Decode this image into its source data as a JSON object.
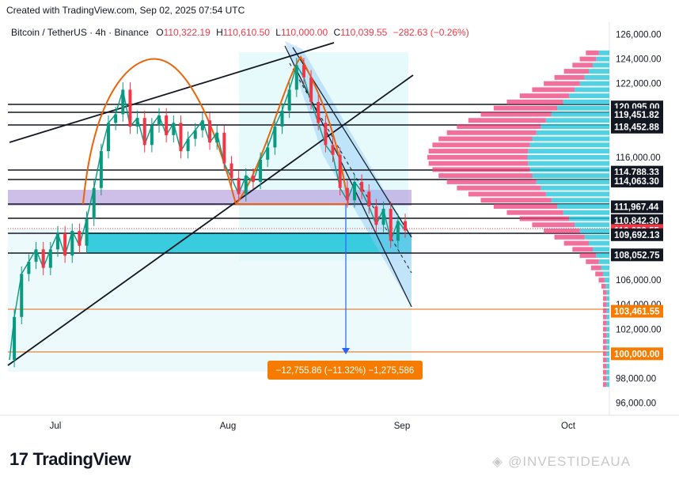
{
  "header": {
    "text": "Created with TradingView.com, Sep 02, 2025 07:54 UTC"
  },
  "legend": {
    "symbol": "Bitcoin / TetherUS · 4h · Binance",
    "open_label": "O",
    "open": "110,322.19",
    "high_label": "H",
    "high": "110,610.50",
    "low_label": "L",
    "low": "110,000.00",
    "close_label": "C",
    "close": "110,039.55",
    "change": "−282.63 (−0.26%)"
  },
  "colors": {
    "down": "#f23645",
    "orange": "#e8650a",
    "cyan": "#26c6da",
    "purple": "#b39ddb",
    "zone": "#e0f7fa",
    "label_bg": "#f57c00",
    "black_label": "#131722"
  },
  "logo": {
    "text": "TradingView",
    "mark": "17"
  },
  "watermark": {
    "text": "@INVESTIDEAUA"
  },
  "measure_label": "−12,755.86 (−11.32%) −1,275,586",
  "chart_data": {
    "type": "candlestick",
    "title": "",
    "x_ticks": [
      "Jul",
      "Aug",
      "Sep",
      "Oct"
    ],
    "y_ticks": [
      96000,
      98000,
      102000,
      104000,
      106000,
      116000,
      122000,
      124000,
      126000
    ],
    "ylim": [
      95000,
      127000
    ],
    "price_labels": [
      {
        "value": 120095.0,
        "text": "120,095.00",
        "style": "black"
      },
      {
        "value": 119451.82,
        "text": "119,451.82",
        "style": "black"
      },
      {
        "value": 118452.88,
        "text": "118,452.88",
        "style": "black"
      },
      {
        "value": 114788.33,
        "text": "114,788.33",
        "style": "black"
      },
      {
        "value": 114063.3,
        "text": "114,063.30",
        "style": "black"
      },
      {
        "value": 111967.44,
        "text": "111,967.44",
        "style": "black"
      },
      {
        "value": 110842.3,
        "text": "110,842.30",
        "style": "black"
      },
      {
        "value": 110039.55,
        "text": "110,039.55",
        "style": "red"
      },
      {
        "value": 109692.13,
        "text": "109,692.13",
        "style": "black"
      },
      {
        "value": 108052.75,
        "text": "108,052.75",
        "style": "black"
      },
      {
        "value": 103461.55,
        "text": "103,461.55",
        "style": "orange"
      },
      {
        "value": 100000.0,
        "text": "100,000.00",
        "style": "orange"
      }
    ],
    "price_path": [
      [
        0,
        99500
      ],
      [
        4,
        103000
      ],
      [
        10,
        106500
      ],
      [
        16,
        107500
      ],
      [
        22,
        108500
      ],
      [
        28,
        107000
      ],
      [
        34,
        108500
      ],
      [
        40,
        109800
      ],
      [
        46,
        108000
      ],
      [
        52,
        110000
      ],
      [
        58,
        108800
      ],
      [
        64,
        111000
      ],
      [
        70,
        113500
      ],
      [
        76,
        116500
      ],
      [
        82,
        118800
      ],
      [
        88,
        119500
      ],
      [
        94,
        121500
      ],
      [
        100,
        118500
      ],
      [
        106,
        119200
      ],
      [
        112,
        117000
      ],
      [
        118,
        118600
      ],
      [
        124,
        119400
      ],
      [
        130,
        117800
      ],
      [
        136,
        118800
      ],
      [
        142,
        116500
      ],
      [
        148,
        117500
      ],
      [
        154,
        118200
      ],
      [
        160,
        119000
      ],
      [
        166,
        117200
      ],
      [
        172,
        118000
      ],
      [
        178,
        115500
      ],
      [
        184,
        114300
      ],
      [
        190,
        113000
      ],
      [
        196,
        114500
      ],
      [
        202,
        114000
      ],
      [
        208,
        115800
      ],
      [
        214,
        116800
      ],
      [
        220,
        118500
      ],
      [
        226,
        119800
      ],
      [
        232,
        121500
      ],
      [
        238,
        123500
      ],
      [
        244,
        122500
      ],
      [
        250,
        120500
      ],
      [
        256,
        118800
      ],
      [
        262,
        117000
      ],
      [
        268,
        116200
      ],
      [
        274,
        113500
      ],
      [
        280,
        112500
      ],
      [
        286,
        114000
      ],
      [
        292,
        113200
      ],
      [
        298,
        112000
      ],
      [
        304,
        110500
      ],
      [
        310,
        111800
      ],
      [
        316,
        109200
      ],
      [
        322,
        110800
      ],
      [
        328,
        110039.55
      ]
    ]
  }
}
